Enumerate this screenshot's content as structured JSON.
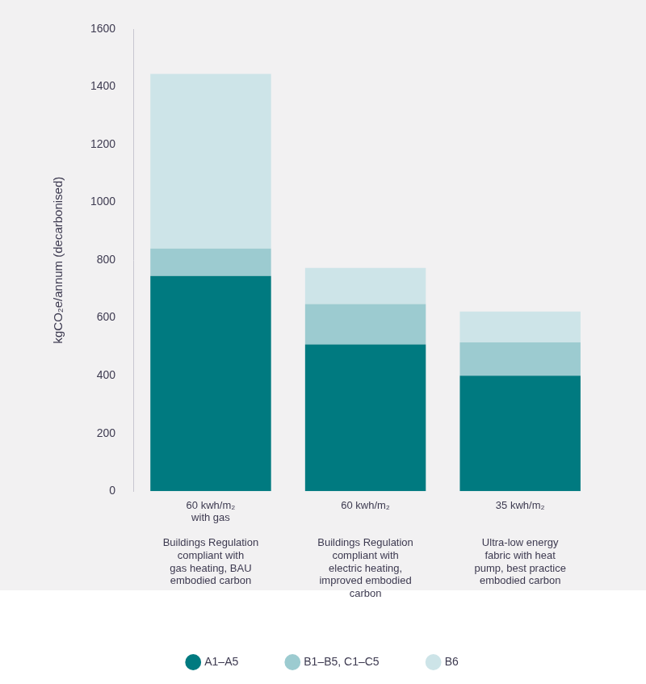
{
  "chart_data": {
    "type": "bar",
    "stacked": true,
    "y_label": "kgCO₂e/annum (decarbonised)",
    "categories": [
      [
        "60 kwh/m₂",
        "with gas"
      ],
      [
        "60 kwh/m₂"
      ],
      [
        "35 kwh/m₂"
      ]
    ],
    "descriptions": [
      [
        "Buildings Regulation",
        "compliant with",
        "gas heating, BAU",
        "embodied carbon"
      ],
      [
        "Buildings Regulation",
        "compliant with",
        "electric heating,",
        "improved embodied",
        "carbon"
      ],
      [
        "Ultra-low energy",
        "fabric with heat",
        "pump, best practice",
        "embodied carbon"
      ]
    ],
    "series": [
      {
        "name": "A1–A5",
        "color": "#007a80",
        "values": [
          745,
          508,
          400
        ]
      },
      {
        "name": "B1–B5, C1–C5",
        "color": "#9ccbd0",
        "values": [
          95,
          140,
          115
        ]
      },
      {
        "name": "B6",
        "color": "#cde4e8",
        "values": [
          605,
          125,
          107
        ]
      }
    ],
    "ylim": [
      0,
      1600
    ],
    "yticks": [
      0,
      200,
      400,
      600,
      800,
      1000,
      1200,
      1400,
      1600
    ],
    "grid": false,
    "legend": "bottom"
  }
}
